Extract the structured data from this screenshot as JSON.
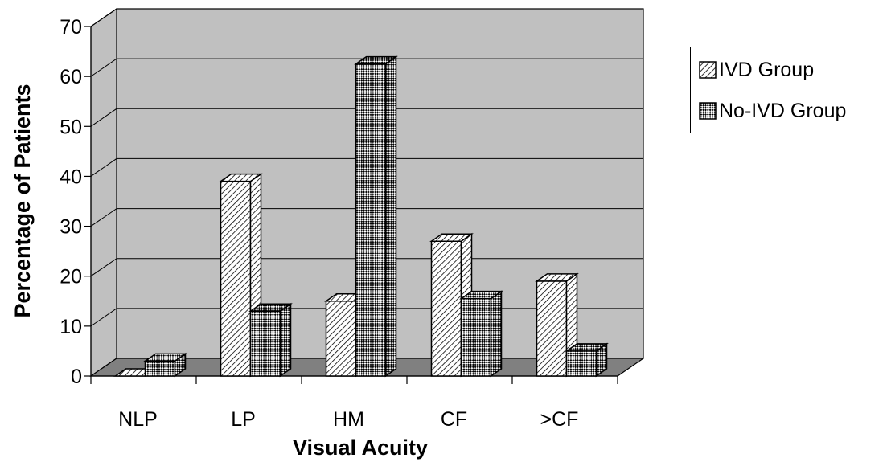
{
  "chart_data": {
    "type": "bar",
    "three_d": true,
    "title": "",
    "xlabel": "Visual Acuity",
    "ylabel": "Percentage of Patients",
    "categories": [
      "NLP",
      "LP",
      "HM",
      "CF",
      ">CF"
    ],
    "ylim": [
      0,
      70
    ],
    "yticks": [
      0,
      10,
      20,
      30,
      40,
      50,
      60,
      70
    ],
    "grid": true,
    "legend_position": "top-right",
    "series": [
      {
        "name": "IVD Group",
        "values": [
          0,
          39,
          15,
          27,
          19
        ],
        "pattern": "diagonal-hatch"
      },
      {
        "name": "No-IVD Group",
        "values": [
          3,
          13,
          62.5,
          15.5,
          5
        ],
        "pattern": "checkerboard"
      }
    ]
  },
  "colors": {
    "wall": "#c0c0c0",
    "floor": "#808080",
    "gridline": "#000000",
    "bar_fill": "#ffffff",
    "bar_pattern": "#000000"
  }
}
